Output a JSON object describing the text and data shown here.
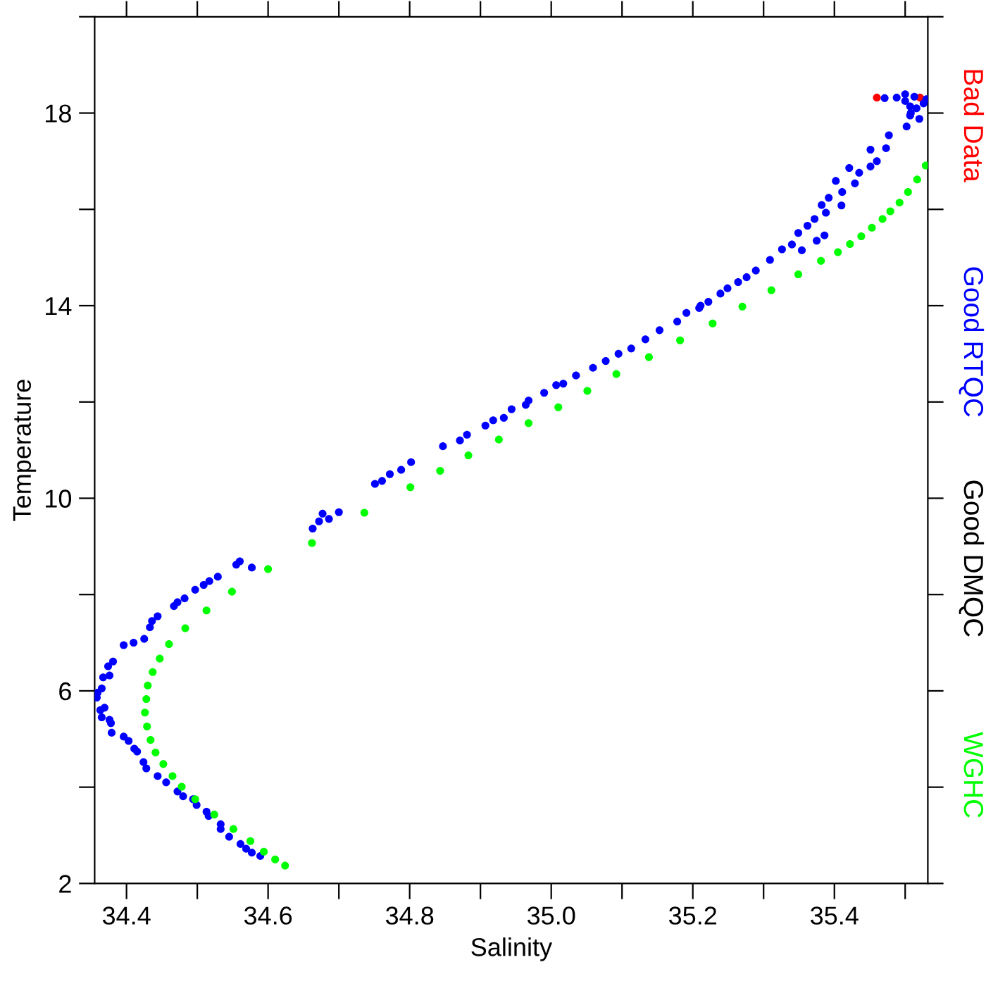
{
  "chart_data": {
    "type": "scatter",
    "xlabel": "Salinity",
    "ylabel": "Temperature",
    "xlim": [
      34.355,
      35.532
    ],
    "ylim": [
      2,
      20
    ],
    "xticks": [
      34.4,
      {
        "value": 34.5,
        "label": null
      },
      34.6,
      {
        "value": 34.7,
        "label": null
      },
      34.8,
      {
        "value": 34.9,
        "label": null
      },
      {
        "value": 35.0,
        "label": "35.0"
      },
      {
        "value": 35.1,
        "label": null
      },
      35.2,
      {
        "value": 35.3,
        "label": null
      },
      35.4,
      {
        "value": 35.5,
        "label": null
      }
    ],
    "yticks": [
      2,
      {
        "value": 4,
        "label": null
      },
      6,
      {
        "value": 8,
        "label": null
      },
      10,
      {
        "value": 12,
        "label": null
      },
      14,
      {
        "value": 16,
        "label": null
      },
      18,
      {
        "value": 20,
        "label": null
      }
    ],
    "grid": false,
    "legend": "right",
    "marker": "circle",
    "series": [
      {
        "name": "Bad Data",
        "color": "#ff0000",
        "x": [
          35.46,
          35.521
        ],
        "values": [
          18.32,
          18.32
        ]
      },
      {
        "name": "Good RTQC",
        "color": "#0000ff",
        "x": [
          34.589,
          34.577,
          34.569,
          34.561,
          34.545,
          34.533,
          34.533,
          34.516,
          34.513,
          34.499,
          34.494,
          34.48,
          34.472,
          34.456,
          34.444,
          34.428,
          34.424,
          34.415,
          34.411,
          34.403,
          34.396,
          34.379,
          34.378,
          34.376,
          34.365,
          34.369,
          34.363,
          34.358,
          34.359,
          34.365,
          34.367,
          34.376,
          34.374,
          34.381,
          34.396,
          34.41,
          34.425,
          34.433,
          34.436,
          34.444,
          34.467,
          34.472,
          34.482,
          34.497,
          34.509,
          34.517,
          34.529,
          34.555,
          34.56,
          34.577,
          34.663,
          34.672,
          34.677,
          34.686,
          34.7,
          34.751,
          34.761,
          34.772,
          34.788,
          34.802,
          34.847,
          34.871,
          34.881,
          34.907,
          34.918,
          34.933,
          34.944,
          34.964,
          34.968,
          34.99,
          35.007,
          35.017,
          35.035,
          35.059,
          35.077,
          35.095,
          35.113,
          35.133,
          35.153,
          35.178,
          35.191,
          35.211,
          35.209,
          35.222,
          35.239,
          35.249,
          35.264,
          35.276,
          35.289,
          35.309,
          35.326,
          35.34,
          35.354,
          35.349,
          35.362,
          35.372,
          35.375,
          35.386,
          35.382,
          35.388,
          35.392,
          35.402,
          35.411,
          35.41,
          35.429,
          35.421,
          35.435,
          35.451,
          35.46,
          35.451,
          35.473,
          35.477,
          35.502,
          35.52,
          35.508,
          35.507,
          35.516,
          35.526,
          35.5,
          35.513,
          35.488,
          35.471,
          35.5,
          35.53,
          35.507
        ],
        "values": [
          2.57,
          2.64,
          2.72,
          2.82,
          2.97,
          3.13,
          3.23,
          3.4,
          3.49,
          3.63,
          3.75,
          3.81,
          3.91,
          4.1,
          4.23,
          4.39,
          4.52,
          4.74,
          4.8,
          4.96,
          5.05,
          5.13,
          5.33,
          5.4,
          5.45,
          5.65,
          5.6,
          5.86,
          5.96,
          6.05,
          6.28,
          6.32,
          6.51,
          6.61,
          6.95,
          7.0,
          7.08,
          7.32,
          7.45,
          7.55,
          7.76,
          7.84,
          7.92,
          8.1,
          8.2,
          8.28,
          8.37,
          8.62,
          8.69,
          8.56,
          9.37,
          9.52,
          9.68,
          9.57,
          9.71,
          10.3,
          10.36,
          10.5,
          10.59,
          10.75,
          11.08,
          11.2,
          11.32,
          11.51,
          11.62,
          11.67,
          11.85,
          11.94,
          12.03,
          12.19,
          12.35,
          12.38,
          12.55,
          12.71,
          12.85,
          13.0,
          13.11,
          13.3,
          13.49,
          13.67,
          13.85,
          14.0,
          13.95,
          14.08,
          14.25,
          14.36,
          14.49,
          14.59,
          14.73,
          14.95,
          15.17,
          15.27,
          15.15,
          15.51,
          15.66,
          15.8,
          15.35,
          15.46,
          16.09,
          15.93,
          16.24,
          16.59,
          16.36,
          16.08,
          16.54,
          16.86,
          16.76,
          16.89,
          17.0,
          17.24,
          17.27,
          17.54,
          17.72,
          17.88,
          18.0,
          18.14,
          18.1,
          18.2,
          18.39,
          18.34,
          18.32,
          18.31,
          18.25,
          18.29,
          17.95
        ]
      },
      {
        "name": "Good DMQC",
        "color": "#000000"
      },
      {
        "name": "WGHC",
        "color": "#00ff00",
        "x": [
          34.624,
          34.61,
          34.594,
          34.575,
          34.551,
          34.524,
          34.497,
          34.478,
          34.465,
          34.452,
          34.441,
          34.434,
          34.429,
          34.426,
          34.428,
          34.43,
          34.437,
          34.447,
          34.46,
          34.483,
          34.513,
          34.549,
          34.6,
          34.662,
          34.736,
          34.801,
          34.843,
          34.883,
          34.926,
          34.968,
          35.01,
          35.051,
          35.092,
          35.138,
          35.182,
          35.228,
          35.27,
          35.311,
          35.349,
          35.381,
          35.405,
          35.422,
          35.438,
          35.453,
          35.468,
          35.479,
          35.492,
          35.504,
          35.517,
          35.529
        ],
        "values": [
          2.37,
          2.5,
          2.66,
          2.88,
          3.13,
          3.43,
          3.75,
          4.01,
          4.23,
          4.48,
          4.72,
          4.98,
          5.26,
          5.55,
          5.83,
          6.11,
          6.39,
          6.67,
          6.97,
          7.3,
          7.67,
          8.06,
          8.53,
          9.07,
          9.7,
          10.23,
          10.57,
          10.89,
          11.22,
          11.56,
          11.89,
          12.23,
          12.58,
          12.93,
          13.28,
          13.63,
          13.98,
          14.32,
          14.65,
          14.93,
          15.11,
          15.28,
          15.44,
          15.62,
          15.8,
          15.96,
          16.14,
          16.36,
          16.62,
          16.91
        ]
      }
    ]
  }
}
